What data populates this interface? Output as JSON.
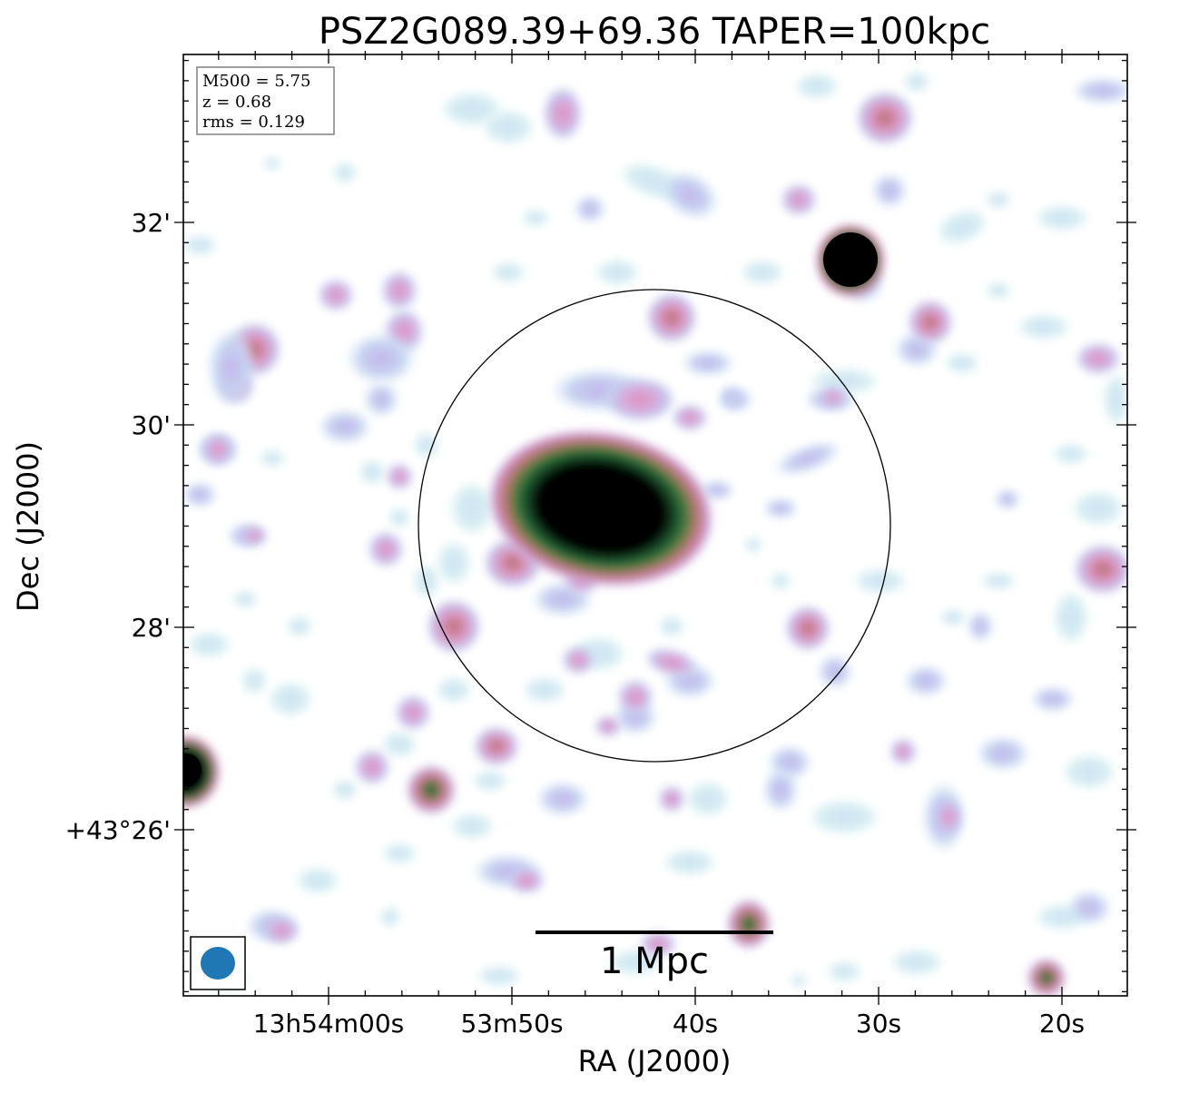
{
  "chart_data": {
    "type": "heatmap",
    "title": "PSZ2G089.39+69.36 TAPER=100kpc",
    "xlabel": "RA (J2000)",
    "ylabel": "Dec (J2000)",
    "x_ticks": [
      "13h54m00s",
      "53m50s",
      "40s",
      "30s",
      "20s"
    ],
    "y_ticks": [
      "32'",
      "30'",
      "28'",
      "+43°26'"
    ],
    "colormap": "cubehelix_r",
    "grid": false,
    "info_box": {
      "lines": [
        "M500 = 5.75",
        "z = 0.68",
        "rms = 0.129"
      ],
      "placement": "top-left"
    },
    "scale_bar": {
      "label": "1 Mpc",
      "placement": "bottom-center"
    },
    "beam": {
      "color": "#1f77b4",
      "placement": "bottom-left"
    },
    "circle": {
      "color": "#000000",
      "center": "cluster-center"
    },
    "sources": [
      {
        "name": "central",
        "intensity": 1.0
      },
      {
        "name": "north-east",
        "intensity": 1.0
      },
      {
        "name": "west-edge",
        "intensity": 0.95
      },
      {
        "name": "south-west",
        "intensity": 0.8
      }
    ]
  }
}
